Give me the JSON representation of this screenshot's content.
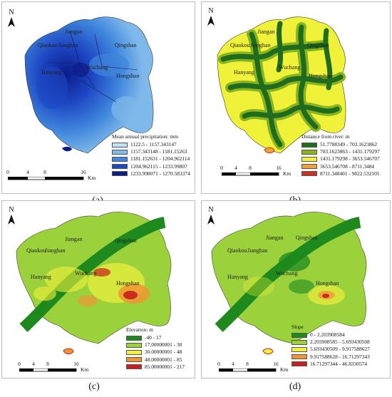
{
  "north_label": "N",
  "panels": [
    {
      "id": "a",
      "caption": "(a)",
      "places": [
        "Jiangan",
        "Qiaokou",
        "Jianghan",
        "Qingshan",
        "Hanyang",
        "Wuchang",
        "Hongshan"
      ],
      "legend": {
        "title": "Mean annual precipitation: mm",
        "items": [
          {
            "label": "1122.5 - 1157.343147",
            "color": "#bfe1f5"
          },
          {
            "label": "1157.343148 - 1181.15263",
            "color": "#7fb8ea"
          },
          {
            "label": "1181.152631 - 1204.962114",
            "color": "#3f86dd"
          },
          {
            "label": "1204.962115 - 1233.99807",
            "color": "#1d47c3"
          },
          {
            "label": "1233.998071 - 1270.583374",
            "color": "#0b1b8a"
          }
        ]
      },
      "scale": {
        "ticks": [
          "0",
          "4",
          "8",
          "16"
        ],
        "unit": "Km"
      }
    },
    {
      "id": "b",
      "caption": "(b)",
      "places": [
        "Jiangan",
        "Qiaokou",
        "Jianghan",
        "Qingshan",
        "Hanyang",
        "Wuchang",
        "Hongshan"
      ],
      "legend": {
        "title": "Distance from river: m",
        "items": [
          {
            "label": "51.7788349 - 703.1623862",
            "color": "#1f6b1f"
          },
          {
            "label": "703.1623863 - 1431.179297",
            "color": "#8ab41e"
          },
          {
            "label": "1431.179298 - 3653.546707",
            "color": "#f0f23a"
          },
          {
            "label": "3653.546708 - 8711.3484",
            "color": "#f0a23a"
          },
          {
            "label": "8711.348401 - 9822.532105",
            "color": "#c8321e"
          }
        ]
      },
      "scale": {
        "ticks": [
          "0",
          "4",
          "8",
          "16"
        ],
        "unit": "Km"
      }
    },
    {
      "id": "c",
      "caption": "(c)",
      "places": [
        "Jiangan",
        "Qiaokou",
        "Jianghan",
        "Qingshan",
        "Hanyang",
        "Wuchang",
        "Hongshan"
      ],
      "legend": {
        "title": "Elevation: m",
        "items": [
          {
            "label": "-40 - 17",
            "color": "#1e8a1e"
          },
          {
            "label": "17.00000001 - 30",
            "color": "#9bd23c"
          },
          {
            "label": "30.00000001 - 48",
            "color": "#f2f03a"
          },
          {
            "label": "48.00000001 - 85",
            "color": "#f09632"
          },
          {
            "label": "85.00000001 - 217",
            "color": "#c81e1e"
          }
        ]
      },
      "scale": {
        "ticks": [
          "0",
          "4",
          "8",
          "16"
        ],
        "unit": "Km"
      }
    },
    {
      "id": "d",
      "caption": "(d)",
      "places": [
        "Jiangan",
        "Qiaokou",
        "Jianghan",
        "Qingshan",
        "Hanyang",
        "Wuchang",
        "Hongshan"
      ],
      "legend": {
        "title": "Slope",
        "items": [
          {
            "label": "0 - 2.203908584",
            "color": "#1e8a1e"
          },
          {
            "label": "2.203908585 - 5.693430508",
            "color": "#9bd23c"
          },
          {
            "label": "5.693430509 - 9.917588627",
            "color": "#f2f03a"
          },
          {
            "label": "9.917588628 - 16.71297343",
            "color": "#f09632"
          },
          {
            "label": "16.71297344 - 46.8330574",
            "color": "#c81e1e"
          }
        ]
      },
      "scale": {
        "ticks": [
          "0",
          "4",
          "8",
          "16"
        ],
        "unit": "Km"
      }
    }
  ]
}
